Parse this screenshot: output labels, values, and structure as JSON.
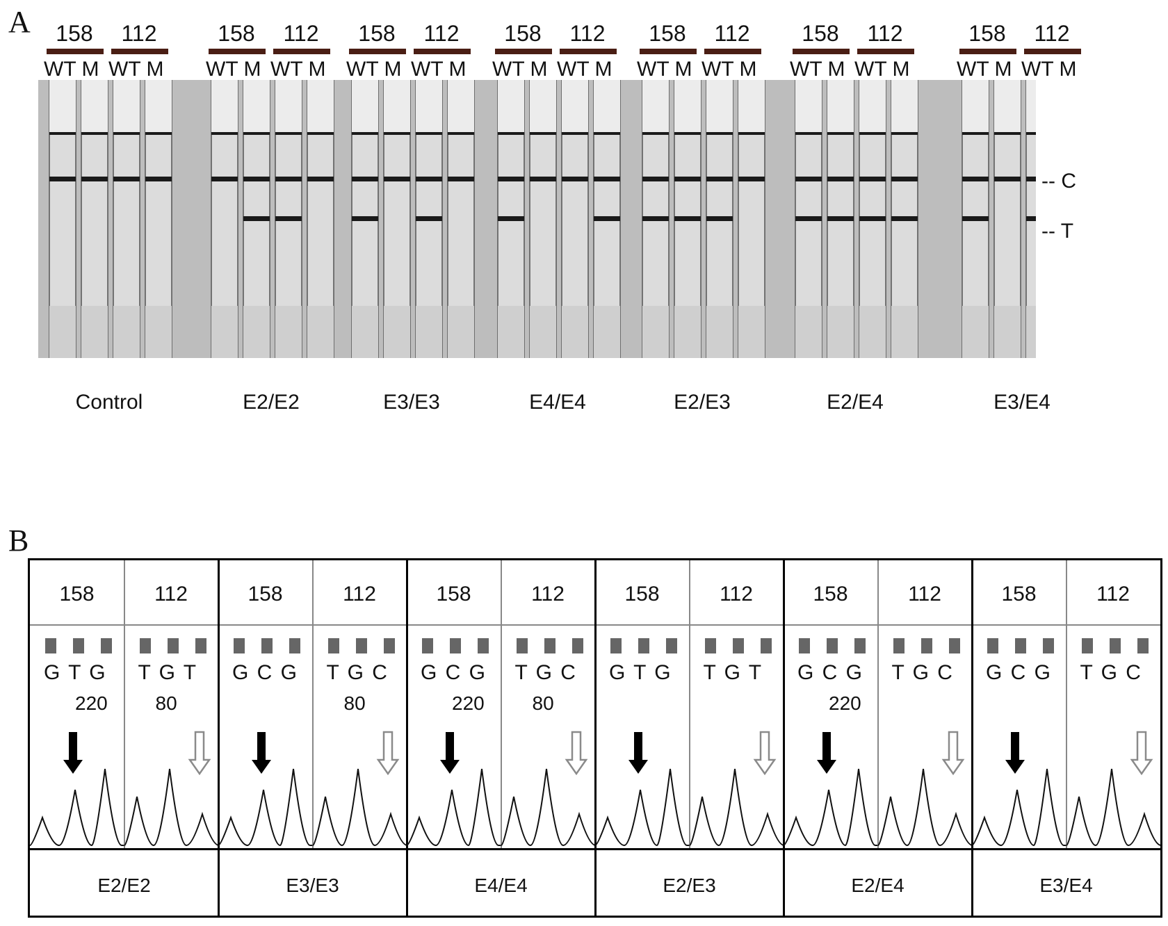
{
  "panelA": {
    "label": "A",
    "lane_labels": [
      "WT",
      "M"
    ],
    "groups": [
      {
        "genotype": "Control",
        "numbers": [
          "158",
          "112"
        ]
      },
      {
        "genotype": "E2/E2",
        "numbers": [
          "158",
          "112"
        ]
      },
      {
        "genotype": "E3/E3",
        "numbers": [
          "158",
          "112"
        ]
      },
      {
        "genotype": "E4/E4",
        "numbers": [
          "158",
          "112"
        ]
      },
      {
        "genotype": "E2/E3",
        "numbers": [
          "158",
          "112"
        ]
      },
      {
        "genotype": "E2/E4",
        "numbers": [
          "158",
          "112"
        ]
      },
      {
        "genotype": "E3/E4",
        "numbers": [
          "158",
          "112"
        ]
      }
    ],
    "markers": {
      "control_line": "-- C",
      "test_line": "-- T"
    },
    "test_line_present": [
      [
        false,
        false,
        false,
        false
      ],
      [
        false,
        true,
        true,
        false
      ],
      [
        true,
        false,
        true,
        false
      ],
      [
        true,
        false,
        false,
        true
      ],
      [
        true,
        true,
        true,
        false
      ],
      [
        true,
        true,
        true,
        true
      ],
      [
        true,
        false,
        true,
        true
      ]
    ]
  },
  "panelB": {
    "label": "B",
    "columns": [
      {
        "pair": "E2/E2",
        "cells": [
          {
            "title": "158",
            "bases": "G T G",
            "pos": "220",
            "arrow": "filled"
          },
          {
            "title": "112",
            "bases": "T  G  T",
            "pos": "80",
            "arrow": "hollow"
          }
        ]
      },
      {
        "pair": "E3/E3",
        "cells": [
          {
            "title": "158",
            "bases": "G C G",
            "pos": "",
            "arrow": "filled"
          },
          {
            "title": "112",
            "bases": "T  G  C",
            "pos": "80",
            "arrow": "hollow"
          }
        ]
      },
      {
        "pair": "E4/E4",
        "cells": [
          {
            "title": "158",
            "bases": "G C G",
            "pos": "220",
            "arrow": "filled"
          },
          {
            "title": "112",
            "bases": "T  G  C",
            "pos": "80",
            "arrow": "hollow"
          }
        ]
      },
      {
        "pair": "E2/E3",
        "cells": [
          {
            "title": "158",
            "bases": "G T G",
            "pos": "",
            "arrow": "filled"
          },
          {
            "title": "112",
            "bases": "T  G  T",
            "pos": "",
            "arrow": "hollow"
          }
        ]
      },
      {
        "pair": "E2/E4",
        "cells": [
          {
            "title": "158",
            "bases": "G C G",
            "pos": "220",
            "arrow": "filled"
          },
          {
            "title": "112",
            "bases": "T  G  C",
            "pos": "",
            "arrow": "hollow"
          }
        ]
      },
      {
        "pair": "E3/E4",
        "cells": [
          {
            "title": "158",
            "bases": "G C G",
            "pos": "",
            "arrow": "filled"
          },
          {
            "title": "112",
            "bases": "T  G  C",
            "pos": "",
            "arrow": "hollow"
          }
        ]
      }
    ]
  },
  "colors": {
    "header_bar": "#4a1e14",
    "strip": "#dcdcdc",
    "band": "#1a1a1a",
    "trace_dark": "#111111",
    "trace_grey": "#8a8a8a"
  }
}
